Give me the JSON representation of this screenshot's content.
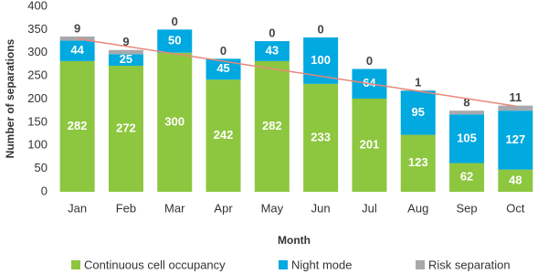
{
  "chart_data": {
    "type": "stacked-bar",
    "x_label": "Month",
    "y_label": "Number of separations",
    "categories": [
      "Jan",
      "Feb",
      "Mar",
      "Apr",
      "May",
      "Jun",
      "Jul",
      "Aug",
      "Sep",
      "Oct"
    ],
    "series": [
      {
        "name": "Continuous cell occupancy",
        "color": "#8dc63f",
        "values": [
          282,
          272,
          300,
          242,
          282,
          233,
          201,
          123,
          62,
          48
        ]
      },
      {
        "name": "Night mode",
        "color": "#00a9e0",
        "values": [
          44,
          25,
          50,
          45,
          43,
          100,
          64,
          95,
          105,
          127
        ]
      },
      {
        "name": "Risk separation",
        "color": "#a7a9ac",
        "values": [
          9,
          9,
          0,
          0,
          0,
          0,
          0,
          1,
          8,
          11
        ]
      }
    ],
    "trendline": {
      "color": "#e8877a",
      "values": [
        330,
        185
      ]
    },
    "ylim": [
      0,
      400
    ],
    "yticks": [
      0,
      50,
      100,
      150,
      200,
      250,
      300,
      350,
      400
    ],
    "grid": false
  }
}
